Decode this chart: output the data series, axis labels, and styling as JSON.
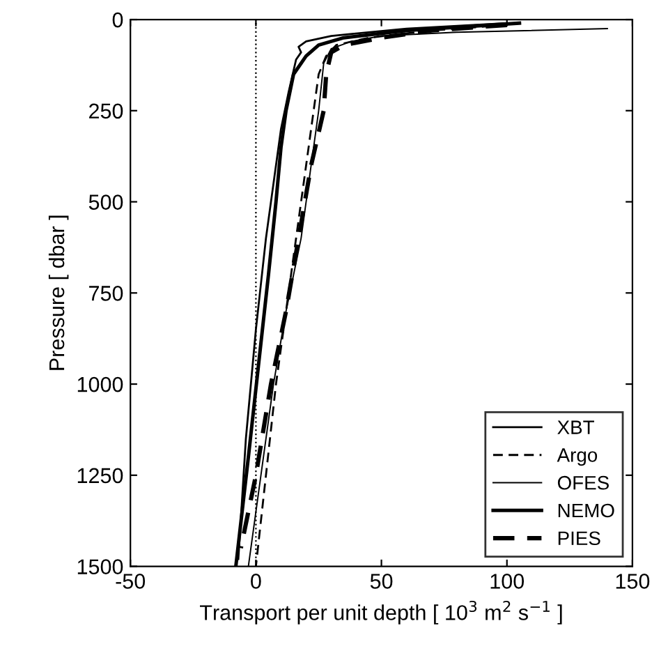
{
  "chart_data": {
    "type": "line",
    "xlabel": "Transport per unit depth [ 10$^{3}$ m$^{2}$ s$^{−1}$ ]",
    "ylabel": "Pressure [ dbar ]",
    "xlim": [
      -50,
      150
    ],
    "xticks": [
      -50,
      0,
      50,
      100,
      150
    ],
    "ylim": [
      1500,
      0
    ],
    "yticks": [
      0,
      250,
      500,
      750,
      1000,
      1250,
      1500
    ],
    "legend": "bottom right",
    "grid": false,
    "ref_lines": [
      {
        "axis": "x",
        "value": 0,
        "line_style": "dotted",
        "color": "#000000"
      }
    ],
    "series": [
      {
        "name": "XBT",
        "color": "#000000",
        "line_style": "solid",
        "x": [
          100,
          60,
          30,
          20,
          17,
          18,
          16,
          13,
          10,
          7,
          4,
          0,
          -4,
          -7
        ],
        "values": [
          10,
          25,
          45,
          60,
          75,
          90,
          110,
          200,
          300,
          450,
          600,
          850,
          1150,
          1480
        ]
      },
      {
        "name": "Argo",
        "color": "#000000",
        "line_style": "dashed",
        "x": [
          100,
          70,
          45,
          32,
          28,
          25,
          23,
          20,
          16,
          12,
          8,
          4,
          0
        ],
        "values": [
          15,
          30,
          50,
          70,
          100,
          150,
          250,
          400,
          600,
          800,
          1000,
          1250,
          1500
        ]
      },
      {
        "name": "OFES",
        "color": "#000000",
        "line_style": "solid",
        "x": [
          140,
          80,
          50,
          38,
          30,
          27,
          25,
          22,
          18,
          12,
          7,
          2,
          -3
        ],
        "values": [
          25,
          35,
          45,
          60,
          80,
          120,
          250,
          400,
          600,
          800,
          1000,
          1250,
          1500
        ]
      },
      {
        "name": "NEMO",
        "color": "#000000",
        "line_style": "solid",
        "x": [
          105,
          60,
          35,
          25,
          20,
          15,
          12,
          10,
          8,
          5,
          1,
          -3,
          -8
        ],
        "values": [
          10,
          30,
          50,
          70,
          100,
          150,
          250,
          350,
          500,
          700,
          950,
          1200,
          1500
        ]
      },
      {
        "name": "PIES",
        "color": "#000000",
        "line_style": "dashed",
        "x": [
          100,
          70,
          50,
          35,
          30,
          28,
          27,
          22,
          17,
          12,
          6,
          0,
          -6
        ],
        "values": [
          15,
          30,
          50,
          70,
          90,
          150,
          250,
          400,
          600,
          800,
          1000,
          1250,
          1450
        ]
      }
    ]
  }
}
